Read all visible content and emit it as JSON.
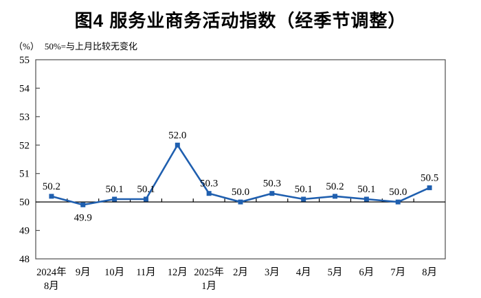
{
  "figure": {
    "title": "图4 服务业商务活动指数（经季节调整）",
    "unit_label": "（%）",
    "axis_note": "50%=与上月比较无变化"
  },
  "colors": {
    "line": "#1F5FAF",
    "marker": "#1F5FAF",
    "frame": "#4D4D4D",
    "baseline": "#000000",
    "text": "#000000"
  },
  "chart_data": {
    "type": "line",
    "title": "图4 服务业商务活动指数（经季节调整）",
    "unit": "%",
    "note": "50%=与上月比较无变化",
    "categories": [
      [
        "2024年",
        "8月"
      ],
      [
        "9月"
      ],
      [
        "10月"
      ],
      [
        "11月"
      ],
      [
        "12月"
      ],
      [
        "2025年",
        "1月"
      ],
      [
        "2月"
      ],
      [
        "3月"
      ],
      [
        "4月"
      ],
      [
        "5月"
      ],
      [
        "6月"
      ],
      [
        "7月"
      ],
      [
        "8月"
      ]
    ],
    "values": [
      50.2,
      49.9,
      50.1,
      50.1,
      52.0,
      50.3,
      50.0,
      50.3,
      50.1,
      50.2,
      50.1,
      50.0,
      50.5
    ],
    "point_labels": [
      "50.2",
      "49.9",
      "50.1",
      "50.1",
      "52.0",
      "50.3",
      "50.0",
      "50.3",
      "50.1",
      "50.2",
      "50.1",
      "50.0",
      "50.5"
    ],
    "label_below_indices": [
      1
    ],
    "ylim": [
      48,
      55
    ],
    "ytick_step": 1,
    "baseline_value": 50,
    "grid": false,
    "legend": "none",
    "marker": "square"
  }
}
